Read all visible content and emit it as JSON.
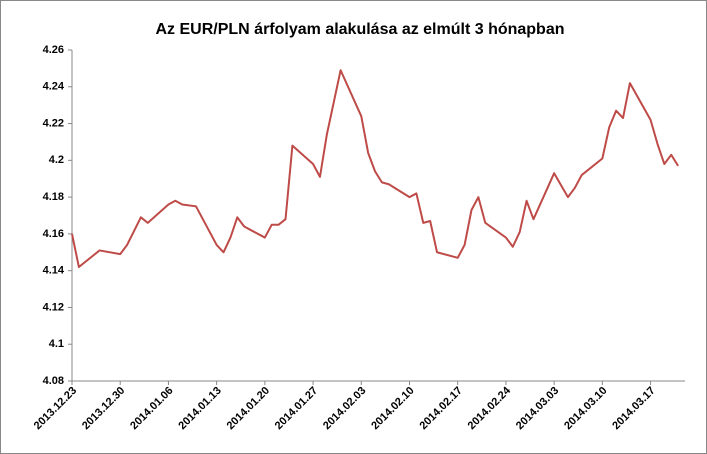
{
  "chart_data": {
    "type": "line",
    "title": "Az EUR/PLN árfolyam alakulása az elmúlt 3 hónapban",
    "x": [
      "2013.12.23",
      "2013.12.24",
      "2013.12.27",
      "2013.12.30",
      "2013.12.31",
      "2014.01.02",
      "2014.01.03",
      "2014.01.06",
      "2014.01.07",
      "2014.01.08",
      "2014.01.10",
      "2014.01.13",
      "2014.01.14",
      "2014.01.15",
      "2014.01.16",
      "2014.01.17",
      "2014.01.20",
      "2014.01.21",
      "2014.01.22",
      "2014.01.23",
      "2014.01.24",
      "2014.01.27",
      "2014.01.28",
      "2014.01.29",
      "2014.01.31",
      "2014.02.03",
      "2014.02.04",
      "2014.02.05",
      "2014.02.06",
      "2014.02.07",
      "2014.02.10",
      "2014.02.11",
      "2014.02.12",
      "2014.02.13",
      "2014.02.14",
      "2014.02.17",
      "2014.02.18",
      "2014.02.19",
      "2014.02.20",
      "2014.02.21",
      "2014.02.24",
      "2014.02.25",
      "2014.02.26",
      "2014.02.27",
      "2014.02.28",
      "2014.03.03",
      "2014.03.05",
      "2014.03.06",
      "2014.03.07",
      "2014.03.10",
      "2014.03.11",
      "2014.03.12",
      "2014.03.13",
      "2014.03.14",
      "2014.03.17",
      "2014.03.18",
      "2014.03.19",
      "2014.03.20",
      "2014.03.21"
    ],
    "series": [
      {
        "name": "EUR/PLN",
        "color": "#be4b48",
        "values": [
          4.16,
          4.142,
          4.151,
          4.149,
          4.154,
          4.169,
          4.166,
          4.176,
          4.178,
          4.176,
          4.175,
          4.154,
          4.15,
          4.158,
          4.169,
          4.164,
          4.158,
          4.165,
          4.165,
          4.168,
          4.208,
          4.198,
          4.191,
          4.214,
          4.249,
          4.224,
          4.204,
          4.194,
          4.188,
          4.187,
          4.18,
          4.182,
          4.166,
          4.167,
          4.15,
          4.147,
          4.154,
          4.173,
          4.18,
          4.166,
          4.158,
          4.153,
          4.161,
          4.178,
          4.168,
          4.193,
          4.18,
          4.185,
          4.192,
          4.201,
          4.218,
          4.227,
          4.223,
          4.242,
          4.222,
          4.209,
          4.198,
          4.203,
          4.197
        ]
      }
    ],
    "xlim": [
      "2013.12.23",
      "2014.03.22"
    ],
    "xticks": [
      "2013.12.23",
      "2013.12.30",
      "2014.01.06",
      "2014.01.13",
      "2014.01.20",
      "2014.01.27",
      "2014.02.03",
      "2014.02.10",
      "2014.02.17",
      "2014.02.24",
      "2014.03.03",
      "2014.03.10",
      "2014.03.17"
    ],
    "ylim": [
      4.08,
      4.26
    ],
    "yticks": [
      4.08,
      4.1,
      4.12,
      4.14,
      4.16,
      4.18,
      4.2,
      4.22,
      4.24,
      4.26
    ],
    "grid": false
  }
}
